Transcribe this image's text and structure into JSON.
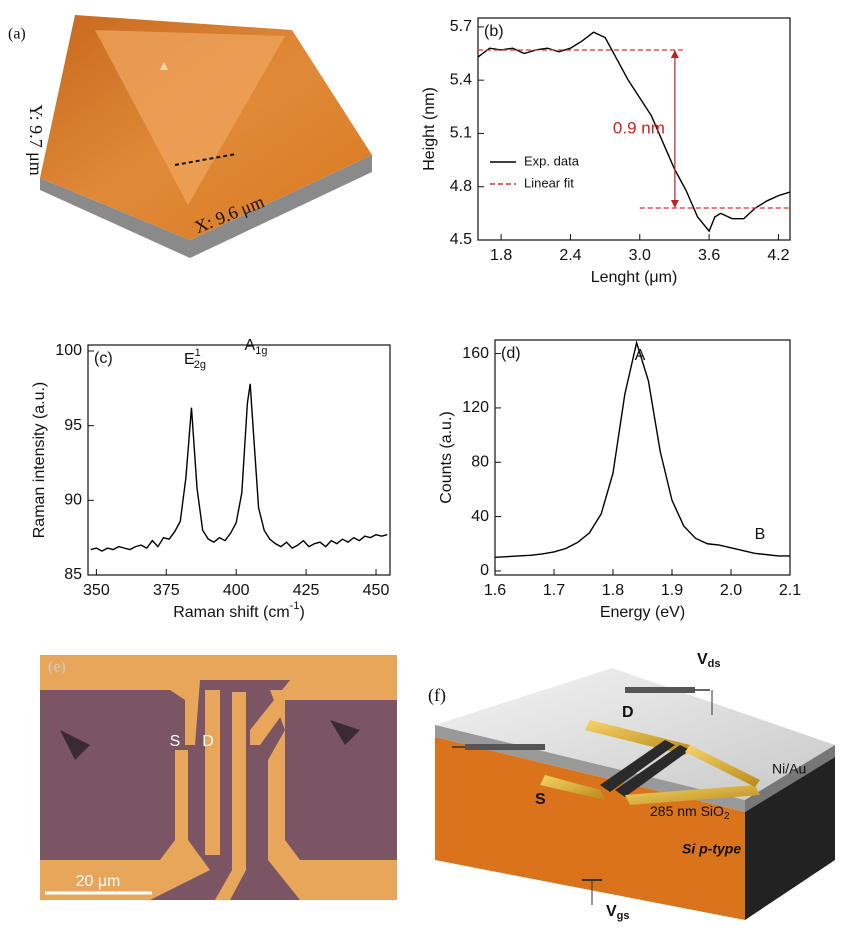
{
  "panels": {
    "a": {
      "label": "(a)",
      "x_size": "X: 9.6 μm",
      "y_size": "Y: 9.7 μm"
    },
    "e": {
      "label": "(e)",
      "source": "S",
      "drain": "D",
      "scale": "20 μm"
    },
    "f": {
      "label": "(f)",
      "vds": {
        "text": "V",
        "sub": "ds"
      },
      "drain": "D",
      "source": "S",
      "metal": "Ni/Au",
      "oxide": {
        "text": "285 nm SiO",
        "sub": "2"
      },
      "substrate": "Si p-type",
      "vgs": {
        "text": "V",
        "sub": "gs"
      }
    }
  },
  "chart_data": [
    {
      "type": "line",
      "panel_label": "(b)",
      "x_label": "Lenght (μm)",
      "y_label": "Height (nm)",
      "x": [
        1.6,
        1.7,
        1.8,
        1.9,
        2.0,
        2.1,
        2.2,
        2.3,
        2.4,
        2.5,
        2.6,
        2.7,
        2.8,
        2.9,
        3.0,
        3.1,
        3.2,
        3.3,
        3.4,
        3.5,
        3.6,
        3.65,
        3.7,
        3.8,
        3.9,
        4.0,
        4.1,
        4.2,
        4.3
      ],
      "series": [
        {
          "name": "Exp. data",
          "color": "#000000",
          "values": [
            5.53,
            5.58,
            5.57,
            5.58,
            5.55,
            5.57,
            5.58,
            5.56,
            5.58,
            5.62,
            5.67,
            5.64,
            5.52,
            5.4,
            5.3,
            5.2,
            5.05,
            4.9,
            4.78,
            4.63,
            4.55,
            4.63,
            4.65,
            4.62,
            4.62,
            4.68,
            4.72,
            4.75,
            4.77
          ]
        }
      ],
      "fit": {
        "name": "Linear fit",
        "color": "#e03030",
        "lines": [
          {
            "y": 5.57,
            "x": [
              1.6,
              3.4
            ]
          },
          {
            "y": 4.68,
            "x": [
              3.0,
              4.3
            ]
          }
        ]
      },
      "annotation": "0.9 nm",
      "xlim": [
        1.6,
        4.3
      ],
      "ylim": [
        4.5,
        5.75
      ],
      "xticks": [
        1.8,
        2.4,
        {
          "value": 3,
          "label": "3.0"
        },
        3.6,
        4.2
      ],
      "yticks": [
        4.5,
        4.8,
        5.1,
        5.4,
        5.7
      ]
    },
    {
      "type": "line",
      "panel_label": "(c)",
      "x_label": {
        "text": "Raman shift (cm",
        "sup": "-1",
        "tail": ")"
      },
      "y_label": "Raman intensity (a.u.)",
      "x": [
        348,
        350,
        352,
        354,
        356,
        358,
        360,
        362,
        364,
        366,
        368,
        370,
        372,
        374,
        376,
        378,
        380,
        382,
        384,
        386,
        388,
        390,
        392,
        394,
        396,
        398,
        400,
        402,
        404,
        405,
        406,
        408,
        410,
        412,
        414,
        416,
        418,
        420,
        422,
        424,
        426,
        428,
        430,
        432,
        434,
        436,
        438,
        440,
        442,
        444,
        446,
        448,
        450,
        452,
        454
      ],
      "series": [
        {
          "color": "#000000",
          "values": [
            86.7,
            86.8,
            86.6,
            86.8,
            86.7,
            86.9,
            86.8,
            86.7,
            86.9,
            87.0,
            86.8,
            87.3,
            86.9,
            87.5,
            87.4,
            87.9,
            88.6,
            91.5,
            96.2,
            90.8,
            88.0,
            87.4,
            87.2,
            87.5,
            87.3,
            87.8,
            88.5,
            90.5,
            96.5,
            97.8,
            95.0,
            89.5,
            88.0,
            87.4,
            87.1,
            86.9,
            87.2,
            86.8,
            87.0,
            87.3,
            86.9,
            87.1,
            87.2,
            86.9,
            87.3,
            87.1,
            87.4,
            87.2,
            87.5,
            87.3,
            87.6,
            87.5,
            87.7,
            87.6,
            87.7
          ]
        }
      ],
      "peaks": [
        {
          "text": "E",
          "sup": "1",
          "sub": "2g"
        },
        {
          "text": "A",
          "sub": "1g"
        }
      ],
      "xlim": [
        347,
        455
      ],
      "ylim": [
        85,
        100.4
      ],
      "xticks": [
        350,
        375,
        400,
        425,
        450
      ],
      "yticks": [
        85,
        90,
        95,
        100
      ]
    },
    {
      "type": "line",
      "panel_label": "(d)",
      "x_label": "Energy (eV)",
      "y_label": "Counts (a.u.)",
      "x": [
        1.6,
        1.62,
        1.64,
        1.66,
        1.68,
        1.7,
        1.72,
        1.74,
        1.76,
        1.78,
        1.8,
        1.82,
        1.84,
        1.86,
        1.88,
        1.9,
        1.92,
        1.94,
        1.96,
        1.98,
        2.0,
        2.02,
        2.04,
        2.06,
        2.08,
        2.1
      ],
      "series": [
        {
          "color": "#000000",
          "values": [
            10,
            10.5,
            11,
            11.5,
            12.5,
            14,
            16.5,
            21,
            28,
            42,
            72,
            130,
            168,
            140,
            88,
            52,
            33,
            24,
            20,
            19,
            17,
            15,
            13,
            12,
            11,
            11
          ]
        }
      ],
      "peaks": [
        {
          "text": "A"
        },
        {
          "text": "B"
        }
      ],
      "xlim": [
        1.6,
        2.1
      ],
      "ylim": [
        -3,
        170
      ],
      "xticks": [
        1.6,
        1.7,
        1.8,
        1.9,
        {
          "value": 2,
          "label": "2.0"
        },
        2.1
      ],
      "yticks": [
        0,
        40,
        80,
        120,
        160
      ]
    }
  ]
}
